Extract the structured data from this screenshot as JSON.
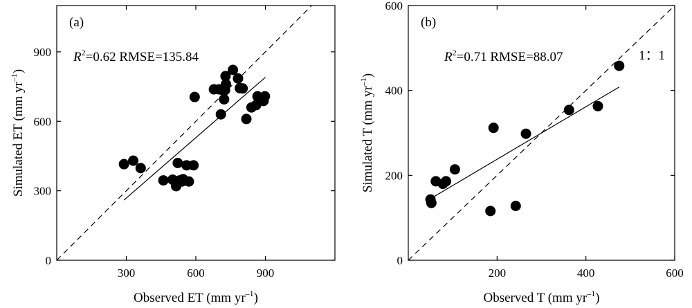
{
  "chart_data": [
    {
      "type": "scatter",
      "panel_label": "(a)",
      "annotation_prefix": "R",
      "annotation_sup": "2",
      "annotation_rest": "=0.62 RMSE=135.84",
      "xlabel_main": "Observed ET (mm yr",
      "xlabel_sup": "–1",
      "xlabel_end": ")",
      "ylabel_main": "Simulated ET (mm yr",
      "ylabel_sup": "–1",
      "ylabel_end": ")",
      "xlim": [
        0,
        1200
      ],
      "ylim": [
        0,
        1100
      ],
      "xticks": [
        300,
        600,
        900
      ],
      "yticks": [
        0,
        300,
        600,
        900
      ],
      "one_to_one": true,
      "fit_line": [
        [
          290,
          260
        ],
        [
          900,
          790
        ]
      ],
      "points": [
        [
          290,
          415
        ],
        [
          330,
          430
        ],
        [
          362,
          398
        ],
        [
          460,
          345
        ],
        [
          500,
          348
        ],
        [
          512,
          338
        ],
        [
          515,
          320
        ],
        [
          522,
          420
        ],
        [
          530,
          345
        ],
        [
          540,
          340
        ],
        [
          545,
          350
        ],
        [
          560,
          410
        ],
        [
          570,
          340
        ],
        [
          590,
          410
        ],
        [
          595,
          705
        ],
        [
          678,
          738
        ],
        [
          700,
          738
        ],
        [
          708,
          630
        ],
        [
          715,
          735
        ],
        [
          722,
          695
        ],
        [
          726,
          735
        ],
        [
          728,
          795
        ],
        [
          730,
          760
        ],
        [
          760,
          822
        ],
        [
          782,
          785
        ],
        [
          790,
          743
        ],
        [
          802,
          742
        ],
        [
          818,
          610
        ],
        [
          840,
          660
        ],
        [
          860,
          670
        ],
        [
          866,
          708
        ],
        [
          892,
          688
        ],
        [
          898,
          708
        ]
      ]
    },
    {
      "type": "scatter",
      "panel_label": "(b)",
      "annotation_prefix": "R",
      "annotation_sup": "2",
      "annotation_rest": "=0.71 RMSE=88.07",
      "one_to_one_label": "1：1",
      "xlabel_main": "Observed T (mm yr",
      "xlabel_sup": "–1",
      "xlabel_end": ")",
      "ylabel_main": "Simulated T (mm yr",
      "ylabel_sup": "–1",
      "ylabel_end": ")",
      "xlim": [
        0,
        600
      ],
      "ylim": [
        0,
        600
      ],
      "xticks": [
        200,
        400,
        600
      ],
      "yticks": [
        0,
        200,
        400,
        600
      ],
      "one_to_one": true,
      "fit_line": [
        [
          50,
          145
        ],
        [
          475,
          408
        ]
      ],
      "points": [
        [
          50,
          143
        ],
        [
          52,
          135
        ],
        [
          62,
          186
        ],
        [
          78,
          180
        ],
        [
          85,
          186
        ],
        [
          105,
          214
        ],
        [
          185,
          116
        ],
        [
          192,
          312
        ],
        [
          242,
          128
        ],
        [
          265,
          298
        ],
        [
          362,
          354
        ],
        [
          427,
          363
        ],
        [
          475,
          458
        ]
      ]
    }
  ]
}
